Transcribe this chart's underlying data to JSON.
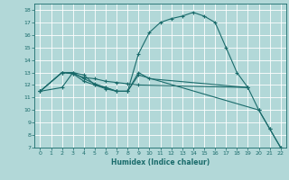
{
  "xlabel": "Humidex (Indice chaleur)",
  "background_color": "#b2d8d8",
  "grid_color": "#ffffff",
  "line_color": "#1a6b6b",
  "xlim": [
    -0.5,
    22.5
  ],
  "ylim": [
    7,
    18.5
  ],
  "yticks": [
    7,
    8,
    9,
    10,
    11,
    12,
    13,
    14,
    15,
    16,
    17,
    18
  ],
  "xticks": [
    0,
    1,
    2,
    3,
    4,
    5,
    6,
    7,
    8,
    9,
    10,
    11,
    12,
    13,
    14,
    15,
    16,
    17,
    18,
    19,
    20,
    21,
    22
  ],
  "series": [
    {
      "x": [
        0,
        2,
        3,
        4,
        5,
        6,
        7,
        8,
        9,
        10,
        11,
        12,
        13,
        14,
        15,
        16,
        17,
        18,
        19,
        20,
        21,
        22
      ],
      "y": [
        11.5,
        11.8,
        13.0,
        12.8,
        12.0,
        11.7,
        11.5,
        11.5,
        14.5,
        16.2,
        17.0,
        17.3,
        17.5,
        17.8,
        17.5,
        17.0,
        15.0,
        13.0,
        11.8,
        10.0,
        8.5,
        7.0
      ]
    },
    {
      "x": [
        0,
        2,
        3,
        4,
        5,
        6,
        7,
        8,
        9,
        19
      ],
      "y": [
        11.5,
        13.0,
        12.9,
        12.6,
        12.5,
        12.3,
        12.2,
        12.1,
        12.0,
        11.8
      ]
    },
    {
      "x": [
        0,
        2,
        3,
        4,
        5,
        6,
        7,
        8,
        9,
        20,
        21,
        22
      ],
      "y": [
        11.5,
        13.0,
        12.9,
        12.3,
        12.0,
        11.8,
        11.5,
        11.5,
        12.8,
        10.0,
        8.5,
        7.0
      ]
    },
    {
      "x": [
        0,
        2,
        3,
        4,
        5,
        6,
        7,
        8,
        9,
        10,
        19
      ],
      "y": [
        11.5,
        13.0,
        13.0,
        12.5,
        12.1,
        11.8,
        11.5,
        11.5,
        13.0,
        12.5,
        11.8
      ]
    }
  ]
}
